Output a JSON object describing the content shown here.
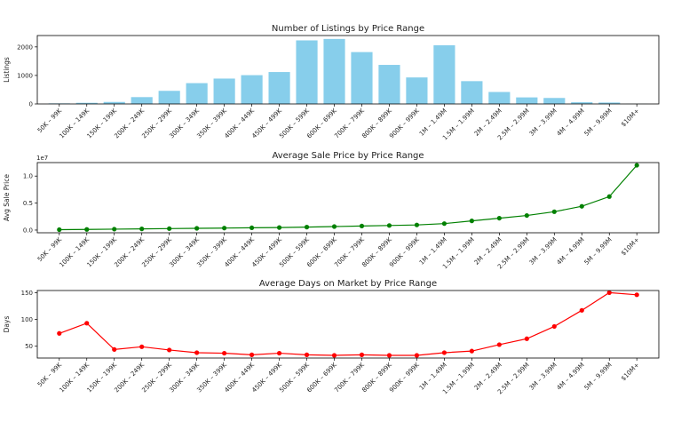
{
  "chart_data": [
    {
      "type": "bar",
      "title": "Number of Listings by Price Range",
      "xlabel": "",
      "ylabel": "Listings",
      "ylim": [
        0,
        2400
      ],
      "yticks": [
        0,
        1000,
        2000
      ],
      "grid": false,
      "color": "#87ceeb",
      "categories": [
        "50K – 99K",
        "100K – 149K",
        "150K – 199K",
        "200K – 249K",
        "250K – 299K",
        "300K – 349K",
        "350K – 399K",
        "400K – 449K",
        "450K – 499K",
        "500K – 599K",
        "600K – 699K",
        "700K – 799K",
        "800K – 899K",
        "900K – 999K",
        "1M – 1.49M",
        "1.5M – 1.99M",
        "2M – 2.49M",
        "2.5M – 2.99M",
        "3M – 3.99M",
        "4M – 4.99M",
        "5M – 9.99M",
        "$10M+"
      ],
      "values": [
        20,
        40,
        70,
        240,
        460,
        730,
        890,
        1010,
        1120,
        2230,
        2280,
        1820,
        1370,
        930,
        2060,
        800,
        420,
        230,
        210,
        60,
        50,
        5
      ]
    },
    {
      "type": "line",
      "title": "Average Sale Price by Price Range",
      "xlabel": "",
      "ylabel": "Avg Sale Price",
      "offset_label": "1e7",
      "ylim": [
        -0.05,
        1.25
      ],
      "yticks": [
        0.0,
        0.5,
        1.0
      ],
      "ytick_labels": [
        "0.0",
        "0.5",
        "1.0"
      ],
      "grid": false,
      "color": "#008000",
      "categories": [
        "50K – 99K",
        "100K – 149K",
        "150K – 199K",
        "200K – 249K",
        "250K – 299K",
        "300K – 349K",
        "350K – 399K",
        "400K – 449K",
        "450K – 499K",
        "500K – 599K",
        "600K – 699K",
        "700K – 799K",
        "800K – 899K",
        "900K – 999K",
        "1M – 1.49M",
        "1.5M – 1.99M",
        "2M – 2.49M",
        "2.5M – 2.99M",
        "3M – 3.99M",
        "4M – 4.99M",
        "5M – 9.99M",
        "$10M+"
      ],
      "values": [
        0.008,
        0.012,
        0.017,
        0.022,
        0.027,
        0.032,
        0.037,
        0.042,
        0.047,
        0.055,
        0.065,
        0.075,
        0.085,
        0.095,
        0.12,
        0.17,
        0.22,
        0.27,
        0.34,
        0.44,
        0.62,
        1.2
      ]
    },
    {
      "type": "line",
      "title": "Average Days on Market by Price Range",
      "xlabel": "",
      "ylabel": "Days",
      "ylim": [
        28,
        154
      ],
      "yticks": [
        50,
        100,
        150
      ],
      "grid": false,
      "color": "#ff0000",
      "categories": [
        "50K – 99K",
        "100K – 149K",
        "150K – 199K",
        "200K – 249K",
        "250K – 299K",
        "300K – 349K",
        "350K – 399K",
        "400K – 449K",
        "450K – 499K",
        "500K – 599K",
        "600K – 699K",
        "700K – 799K",
        "800K – 899K",
        "900K – 999K",
        "1M – 1.49M",
        "1.5M – 1.99M",
        "2M – 2.49M",
        "2.5M – 2.99M",
        "3M – 3.99M",
        "4M – 4.99M",
        "5M – 9.99M",
        "$10M+"
      ],
      "values": [
        74,
        93,
        44,
        49,
        43,
        38,
        37,
        34,
        37,
        34,
        33,
        34,
        33,
        33,
        38,
        41,
        53,
        64,
        87,
        117,
        150,
        146
      ]
    }
  ]
}
